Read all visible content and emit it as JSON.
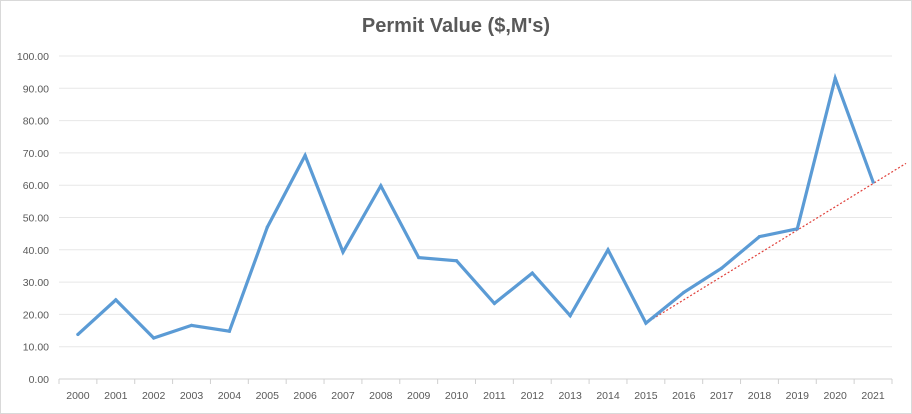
{
  "chart_data": {
    "type": "line",
    "title": "Permit Value ($,M's)",
    "xlabel": "",
    "ylabel": "",
    "categories": [
      "2000",
      "2001",
      "2002",
      "2003",
      "2004",
      "2005",
      "2006",
      "2007",
      "2008",
      "2009",
      "2010",
      "2011",
      "2012",
      "2013",
      "2014",
      "2015",
      "2016",
      "2017",
      "2018",
      "2019",
      "2020",
      "2021"
    ],
    "series": [
      {
        "values": [
          13.8,
          24.5,
          12.7,
          16.6,
          14.8,
          47.0,
          69.2,
          39.3,
          59.8,
          37.6,
          36.6,
          23.4,
          32.8,
          19.6,
          40.0,
          17.3,
          26.8,
          34.3,
          44.1,
          46.5,
          93.1,
          61.0
        ],
        "color": "#5b9bd5"
      }
    ],
    "trendline": {
      "style": "dotted",
      "color": "#e0403a",
      "from_category": "2015",
      "from_value": 17.3,
      "slope_per_year": 7.2
    },
    "ylim": [
      0,
      100
    ],
    "yticks": [
      "0.00",
      "10.00",
      "20.00",
      "30.00",
      "40.00",
      "50.00",
      "60.00",
      "70.00",
      "80.00",
      "90.00",
      "100.00"
    ],
    "grid": true,
    "legend": "none"
  }
}
